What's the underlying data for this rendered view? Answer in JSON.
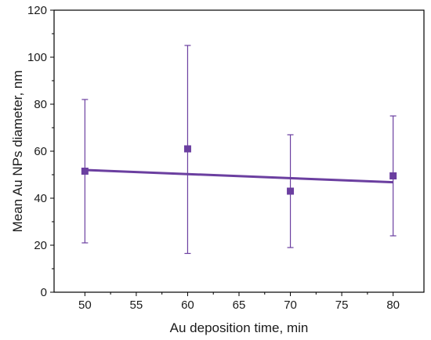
{
  "chart_data": {
    "type": "scatter",
    "title": "",
    "xlabel": "Au deposition time, min",
    "ylabel": "Mean Au NPs diameter, nm",
    "xlim": [
      47,
      83
    ],
    "ylim": [
      0,
      120
    ],
    "x_ticks": [
      50,
      55,
      60,
      65,
      70,
      75,
      80
    ],
    "y_ticks": [
      0,
      20,
      40,
      60,
      80,
      100,
      120
    ],
    "grid": false,
    "legend": "none",
    "color": "#6b3fa0",
    "series": [
      {
        "x": [
          50,
          60,
          70,
          80
        ],
        "y": [
          51.5,
          61,
          43,
          49.5
        ],
        "error_low": [
          21,
          16.5,
          19,
          24
        ],
        "error_high": [
          82,
          105,
          67,
          75
        ]
      }
    ],
    "fit_line": {
      "x": [
        50,
        80
      ],
      "y": [
        52,
        46.8
      ]
    }
  }
}
